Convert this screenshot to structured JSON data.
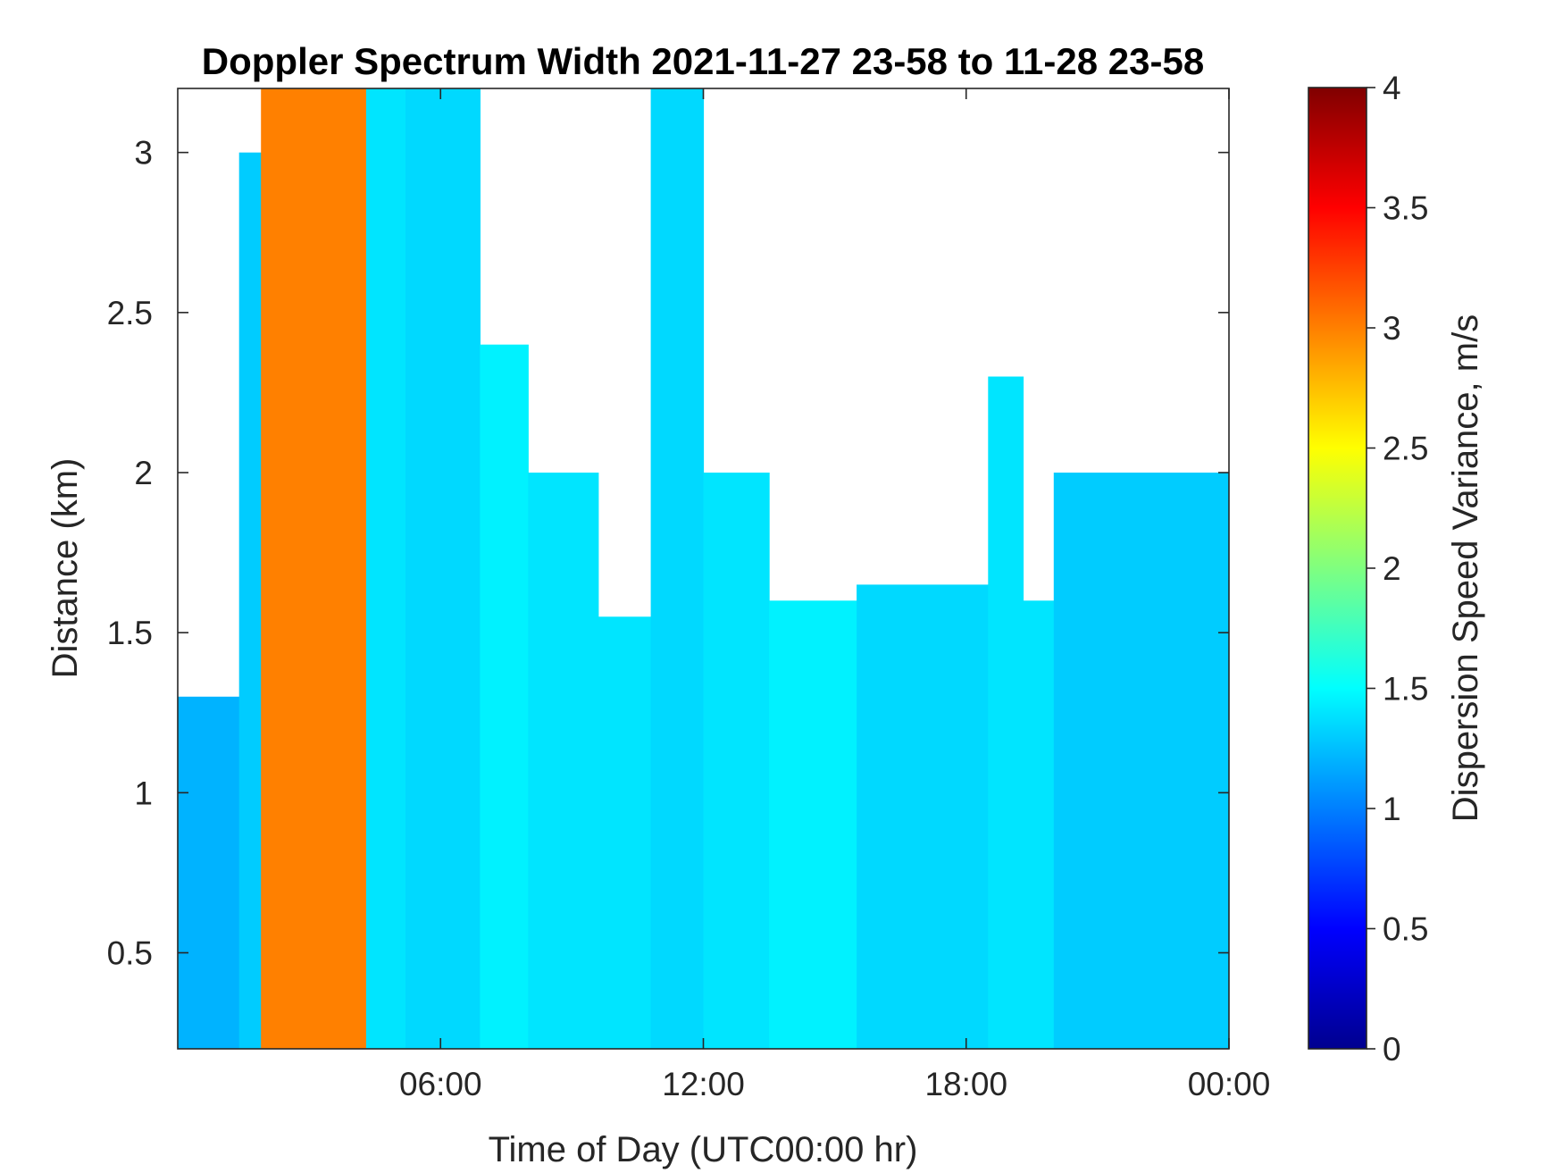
{
  "chart_data": {
    "type": "heatmap",
    "title": "Doppler Spectrum Width 2021-11-27 23-58 to 11-28 23-58",
    "xlabel": "Time of Day (UTC00:00 hr)",
    "ylabel": "Distance (km)",
    "colorbar_label": "Dispersion Speed Variance, m/s",
    "colormap": "jet",
    "xlim": [
      0,
      24
    ],
    "ylim": [
      0.2,
      3.2
    ],
    "clim": [
      0,
      4
    ],
    "x_ticks": [
      6,
      12,
      18,
      24
    ],
    "x_tick_labels": [
      "06:00",
      "12:00",
      "18:00",
      "00:00"
    ],
    "y_ticks": [
      0.5,
      1,
      1.5,
      2,
      2.5,
      3
    ],
    "y_tick_labels": [
      "0.5",
      "1",
      "1.5",
      "2",
      "2.5",
      "3"
    ],
    "c_ticks": [
      0,
      0.5,
      1,
      1.5,
      2,
      2.5,
      3,
      3.5,
      4
    ],
    "c_tick_labels": [
      "0",
      "0.5",
      "1",
      "1.5",
      "2",
      "2.5",
      "3",
      "3.5",
      "4"
    ],
    "no_data_color": "#ffffff",
    "regions": [
      {
        "x_range": [
          0,
          1.4
        ],
        "top_km": 1.3,
        "value": 1.2
      },
      {
        "x_range": [
          1.4,
          1.9
        ],
        "top_km": 3.0,
        "value": 1.3
      },
      {
        "x_range": [
          1.9,
          4.3
        ],
        "top_km": 3.2,
        "value": 3.0
      },
      {
        "x_range": [
          4.3,
          5.2
        ],
        "top_km": 3.2,
        "value": 1.4
      },
      {
        "x_range": [
          5.2,
          6.9
        ],
        "top_km": 3.2,
        "value": 1.35
      },
      {
        "x_range": [
          6.9,
          8.0
        ],
        "top_km": 2.4,
        "value": 1.45
      },
      {
        "x_range": [
          8.0,
          9.6
        ],
        "top_km": 2.0,
        "value": 1.4
      },
      {
        "x_range": [
          9.6,
          10.8
        ],
        "top_km": 1.55,
        "value": 1.4
      },
      {
        "x_range": [
          10.8,
          12.0
        ],
        "top_km": 3.2,
        "value": 1.35
      },
      {
        "x_range": [
          12.0,
          13.5
        ],
        "top_km": 2.0,
        "value": 1.4
      },
      {
        "x_range": [
          13.5,
          15.5
        ],
        "top_km": 1.6,
        "value": 1.45
      },
      {
        "x_range": [
          15.5,
          18.5
        ],
        "top_km": 1.65,
        "value": 1.35
      },
      {
        "x_range": [
          18.5,
          19.3
        ],
        "top_km": 2.3,
        "value": 1.4
      },
      {
        "x_range": [
          19.3,
          20.0
        ],
        "top_km": 1.6,
        "value": 1.4
      },
      {
        "x_range": [
          20.0,
          24.0
        ],
        "top_km": 2.0,
        "value": 1.3
      }
    ]
  }
}
